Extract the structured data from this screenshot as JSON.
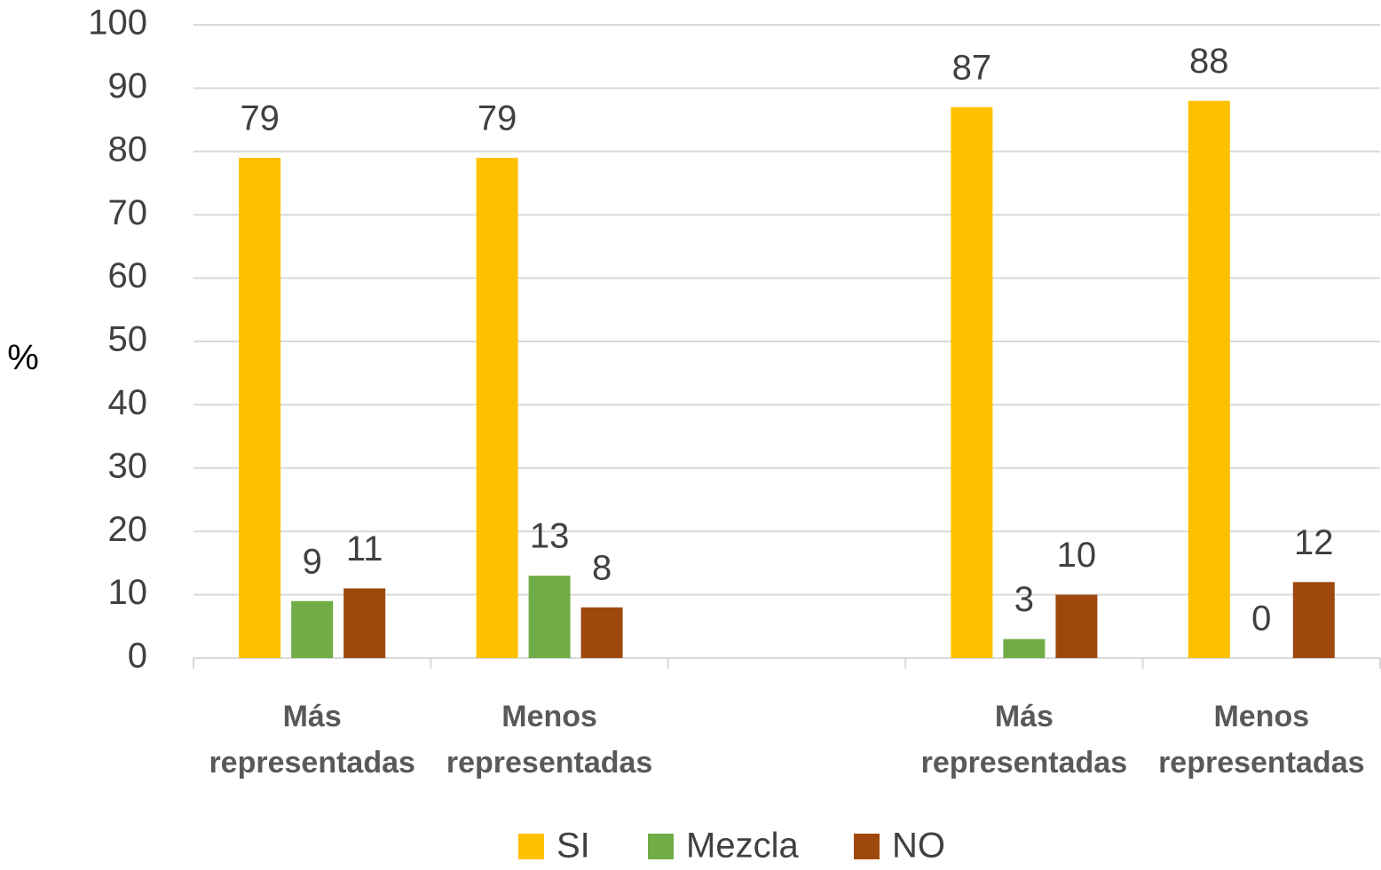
{
  "chart_data": {
    "type": "bar",
    "y_label": "%",
    "categories": [
      "Más representadas",
      "Menos representadas",
      null,
      "Más representadas",
      "Menos representadas"
    ],
    "series": [
      {
        "name": "SI",
        "color": "#ffc000",
        "values": [
          79,
          79,
          null,
          87,
          88
        ]
      },
      {
        "name": "Mezcla",
        "color": "#70ad47",
        "values": [
          9,
          13,
          null,
          3,
          0
        ]
      },
      {
        "name": "NO",
        "color": "#9e480e",
        "values": [
          11,
          8,
          null,
          10,
          12
        ]
      }
    ],
    "ylim": [
      0,
      100
    ],
    "yticks": [
      0,
      10,
      20,
      30,
      40,
      50,
      60,
      70,
      80,
      90,
      100
    ],
    "grid": true,
    "legend": "bottom"
  }
}
